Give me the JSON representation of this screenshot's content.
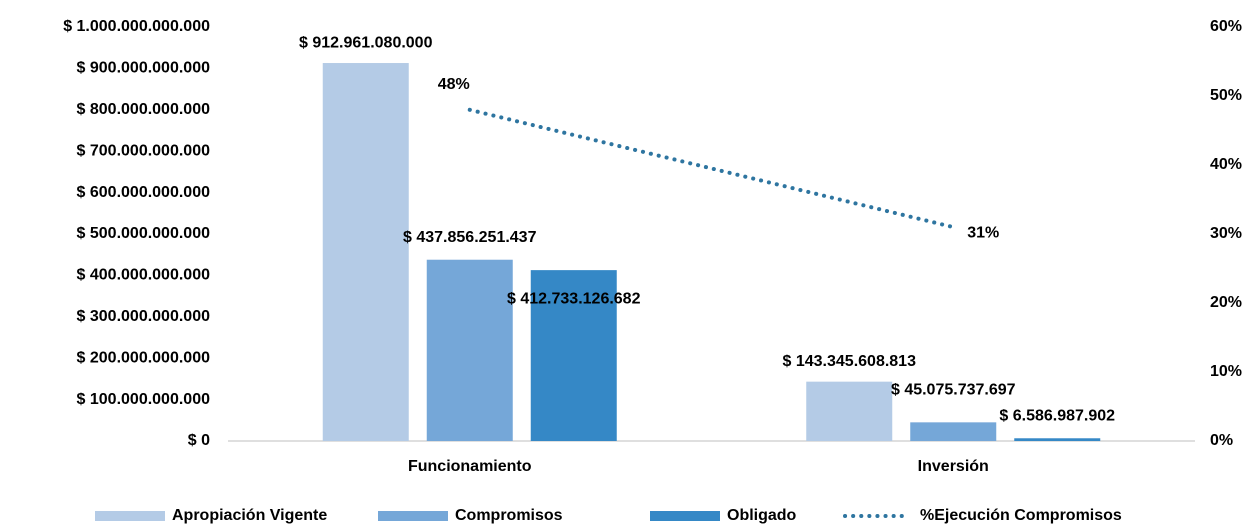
{
  "chart_data": {
    "type": "bar",
    "categories": [
      "Funcionamiento",
      "Inversión"
    ],
    "series": [
      {
        "name": "Apropiación Vigente",
        "color": "#b4cbe6",
        "values": [
          912961080000,
          143345608813
        ],
        "value_labels": [
          "$ 912.961.080.000",
          "$ 143.345.608.813"
        ]
      },
      {
        "name": "Compromisos",
        "color": "#75a7d8",
        "values": [
          437856251437,
          45075737697
        ],
        "value_labels": [
          "$ 437.856.251.437",
          "$ 45.075.737.697"
        ]
      },
      {
        "name": "Obligado",
        "color": "#3588c6",
        "values": [
          412733126682,
          6586987902
        ],
        "value_labels": [
          "$ 412.733.126.682",
          "$ 6.586.987.902"
        ]
      },
      {
        "name": "%Ejecución Compromisos",
        "color": "#2e75a0",
        "type": "line",
        "axis": "y2",
        "values": [
          48,
          31
        ],
        "value_labels": [
          "48%",
          "31%"
        ]
      }
    ],
    "ylim": [
      0,
      1000000000000
    ],
    "yticks": [
      {
        "value": 0,
        "label": "$ 0"
      },
      {
        "value": 100000000000,
        "label": "$ 100.000.000.000"
      },
      {
        "value": 200000000000,
        "label": "$ 200.000.000.000"
      },
      {
        "value": 300000000000,
        "label": "$ 300.000.000.000"
      },
      {
        "value": 400000000000,
        "label": "$ 400.000.000.000"
      },
      {
        "value": 500000000000,
        "label": "$ 500.000.000.000"
      },
      {
        "value": 600000000000,
        "label": "$ 600.000.000.000"
      },
      {
        "value": 700000000000,
        "label": "$ 700.000.000.000"
      },
      {
        "value": 800000000000,
        "label": "$ 800.000.000.000"
      },
      {
        "value": 900000000000,
        "label": "$ 900.000.000.000"
      },
      {
        "value": 1000000000000,
        "label": "$ 1.000.000.000.000"
      }
    ],
    "y2lim": [
      0,
      60
    ],
    "y2ticks": [
      {
        "value": 0,
        "label": "0%"
      },
      {
        "value": 10,
        "label": "10%"
      },
      {
        "value": 20,
        "label": "20%"
      },
      {
        "value": 30,
        "label": "30%"
      },
      {
        "value": 40,
        "label": "40%"
      },
      {
        "value": 50,
        "label": "50%"
      },
      {
        "value": 60,
        "label": "60%"
      }
    ],
    "legend": "bottom"
  }
}
